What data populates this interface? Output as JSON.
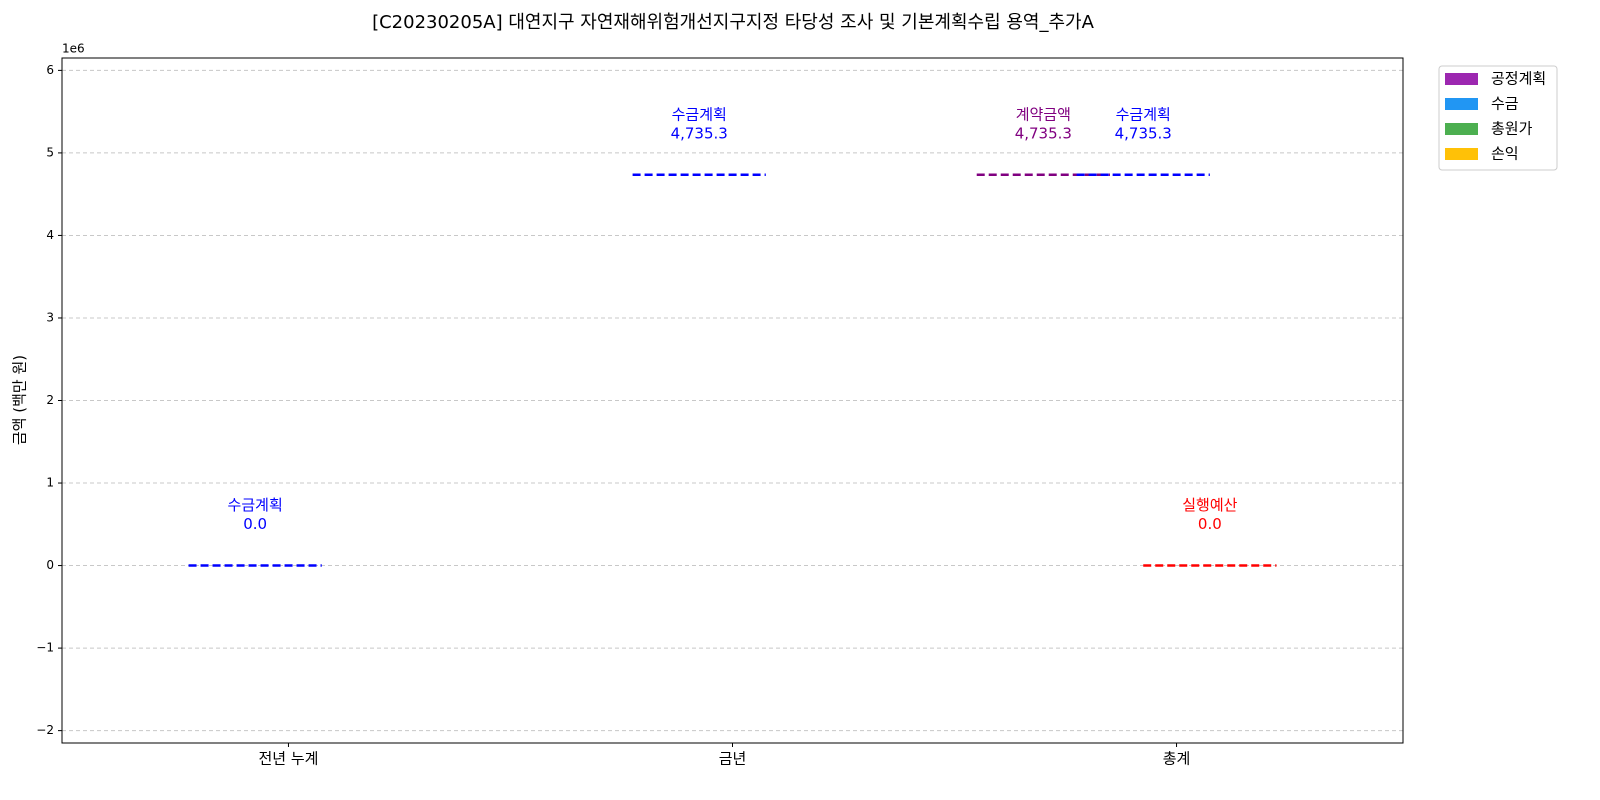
{
  "chart_data": {
    "type": "level",
    "title": "[C20230205A] 대연지구 자연재해위험개선지구지정 타당성 조사 및 기본계획수립 용역_추가A",
    "y_label": "금액 (백만 원)",
    "y_offset_text": "1e6",
    "categories": [
      "전년 누계",
      "금년",
      "총계"
    ],
    "series": [
      {
        "name": "계약금액",
        "color": "#800080",
        "values": [
          null,
          null,
          4735300
        ],
        "value_labels": [
          null,
          null,
          "4,735.3"
        ]
      },
      {
        "name": "수금계획",
        "color": "#0000ff",
        "values": [
          0,
          4735300,
          4735300
        ],
        "value_labels": [
          "0.0",
          "4,735.3",
          "4,735.3"
        ]
      },
      {
        "name": "실행예산",
        "color": "#ff0000",
        "values": [
          null,
          null,
          0
        ],
        "value_labels": [
          null,
          null,
          "0.0"
        ]
      }
    ],
    "legend": [
      {
        "name": "공정계획",
        "color": "#9c27b0"
      },
      {
        "name": "수금",
        "color": "#2196f3"
      },
      {
        "name": "총원가",
        "color": "#4caf50"
      },
      {
        "name": "손익",
        "color": "#ffc107"
      }
    ],
    "legend_position": "upper right outside",
    "ylim": [
      -2150000,
      6150000
    ],
    "yticks": [
      {
        "value": -2000000,
        "label": "−2"
      },
      {
        "value": -1000000,
        "label": "−1"
      },
      {
        "value": 0,
        "label": "0"
      },
      {
        "value": 1000000,
        "label": "1"
      },
      {
        "value": 2000000,
        "label": "2"
      },
      {
        "value": 3000000,
        "label": "3"
      },
      {
        "value": 4000000,
        "label": "4"
      },
      {
        "value": 5000000,
        "label": "5"
      },
      {
        "value": 6000000,
        "label": "6"
      }
    ],
    "grid": true
  }
}
